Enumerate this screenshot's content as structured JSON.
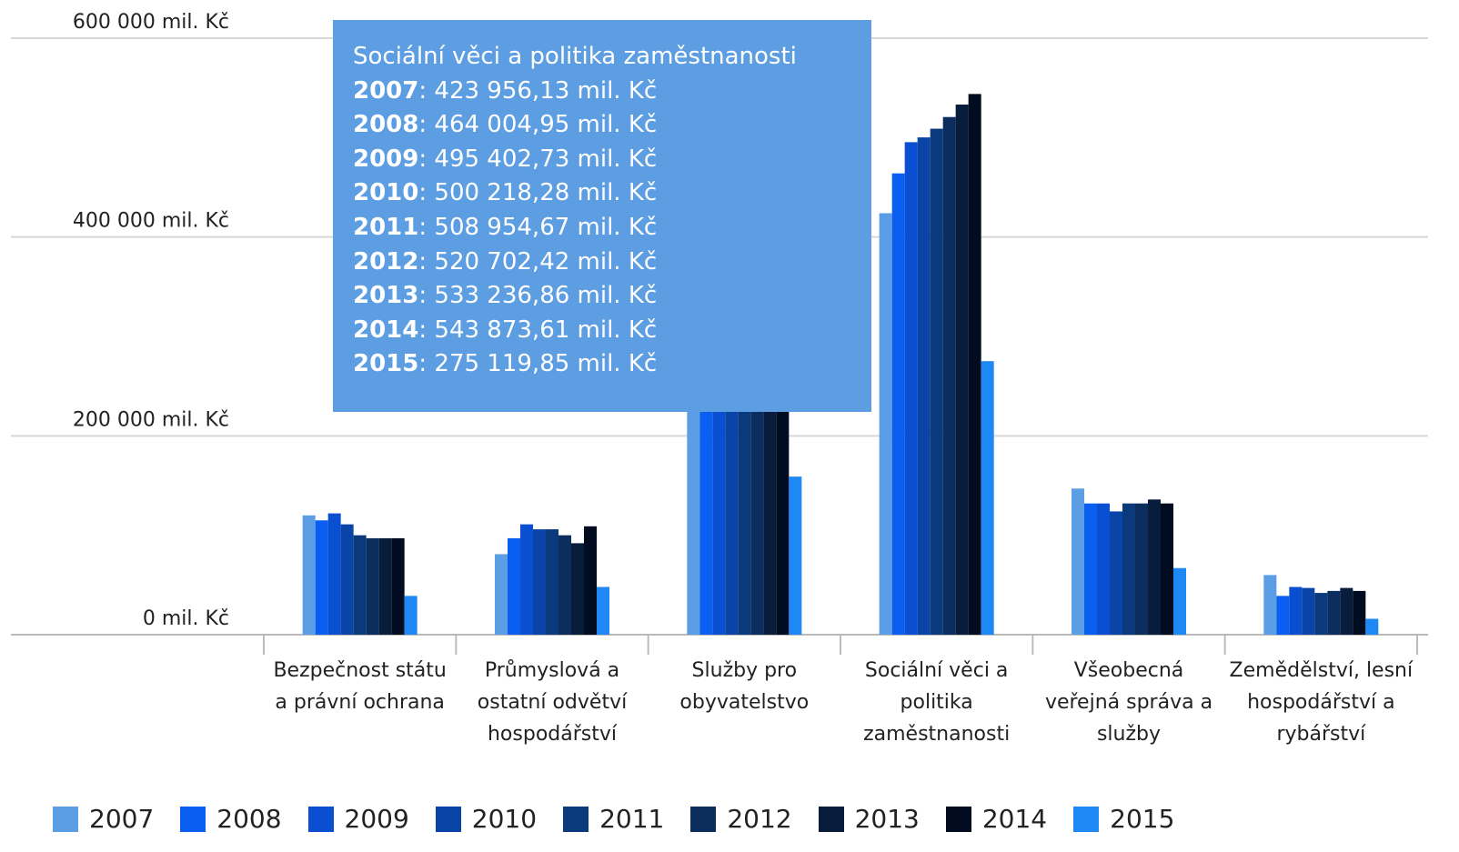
{
  "chart_data": {
    "type": "bar",
    "categories": [
      "Bezpečnost státu a právní ochrana",
      "Průmyslová a ostatní odvětví hospodářství",
      "Služby pro obyvatelstvo",
      "Sociální věci a politika zaměstnanosti",
      "Všeobecná veřejná správa a služby",
      "Zemědělství, lesní hospodářství a rybářství"
    ],
    "series": [
      {
        "name": "2007",
        "color": "#5b9ee6",
        "values": [
          120000,
          81000,
          290000,
          423956.13,
          147000,
          60000
        ],
        "value_labels": [
          null,
          null,
          null,
          "423 956,13 mil. Kč",
          null,
          null
        ]
      },
      {
        "name": "2008",
        "color": "#0a5ff0",
        "values": [
          115000,
          97000,
          300000,
          464004.95,
          132000,
          39000
        ],
        "value_labels": [
          null,
          null,
          null,
          "464 004,95 mil. Kč",
          null,
          null
        ]
      },
      {
        "name": "2009",
        "color": "#0a4fd2",
        "values": [
          122000,
          111000,
          310000,
          495402.73,
          132000,
          48000
        ],
        "value_labels": [
          null,
          null,
          null,
          "495 402,73 mil. Kč",
          null,
          null
        ]
      },
      {
        "name": "2010",
        "color": "#0944a6",
        "values": [
          111000,
          106000,
          315000,
          500218.28,
          124000,
          47000
        ],
        "value_labels": [
          null,
          null,
          null,
          "500 218,28 mil. Kč",
          null,
          null
        ]
      },
      {
        "name": "2011",
        "color": "#0a3a7c",
        "values": [
          100000,
          106000,
          320000,
          508954.67,
          132000,
          42000
        ],
        "value_labels": [
          null,
          null,
          null,
          "508 954,67 mil. Kč",
          null,
          null
        ]
      },
      {
        "name": "2012",
        "color": "#0b2e5e",
        "values": [
          97000,
          100000,
          325000,
          520702.42,
          132000,
          44000
        ],
        "value_labels": [
          null,
          null,
          null,
          "520 702,42 mil. Kč",
          null,
          null
        ]
      },
      {
        "name": "2013",
        "color": "#081c3c",
        "values": [
          97000,
          92000,
          330000,
          533236.86,
          136000,
          47000
        ],
        "value_labels": [
          null,
          null,
          null,
          "533 236,86 mil. Kč",
          null,
          null
        ]
      },
      {
        "name": "2014",
        "color": "#020c20",
        "values": [
          97000,
          109000,
          335000,
          543873.61,
          132000,
          44000
        ],
        "value_labels": [
          null,
          null,
          null,
          "543 873,61 mil. Kč",
          null,
          null
        ]
      },
      {
        "name": "2015",
        "color": "#1e88f5",
        "values": [
          39000,
          48000,
          159000,
          275119.85,
          67000,
          16000
        ],
        "value_labels": [
          null,
          null,
          null,
          "275 119,85 mil. Kč",
          null,
          null
        ]
      }
    ],
    "ylim": [
      0,
      600000
    ],
    "yticks": [
      {
        "value": 0,
        "label": "0 mil. Kč"
      },
      {
        "value": 200000,
        "label": "200 000 mil. Kč"
      },
      {
        "value": 400000,
        "label": "400 000 mil. Kč"
      },
      {
        "value": 600000,
        "label": "600 000 mil. Kč"
      }
    ],
    "grid": true,
    "legend": "bottom"
  }
}
